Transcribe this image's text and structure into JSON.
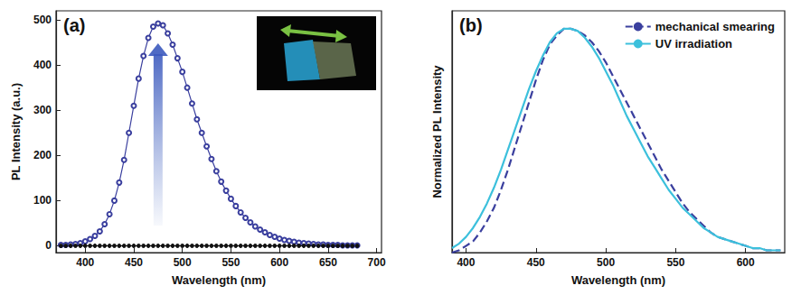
{
  "chart_data": [
    {
      "type": "line",
      "title": "(a)",
      "x_label": "Wavelength (nm)",
      "y_label": "PL Intensity (a.u.)",
      "x": [
        375,
        380,
        385,
        390,
        395,
        400,
        405,
        410,
        415,
        420,
        425,
        430,
        435,
        440,
        445,
        450,
        455,
        460,
        465,
        470,
        475,
        480,
        485,
        490,
        495,
        500,
        505,
        510,
        515,
        520,
        525,
        530,
        535,
        540,
        545,
        550,
        555,
        560,
        565,
        570,
        575,
        580,
        585,
        590,
        595,
        600,
        605,
        610,
        615,
        620,
        625,
        630,
        635,
        640,
        645,
        650,
        655,
        660,
        665,
        670,
        675,
        680
      ],
      "series": [
        {
          "color": "#3a3f9e",
          "marker": "open_circle",
          "values": [
            2,
            2,
            3,
            4,
            6,
            10,
            15,
            22,
            32,
            48,
            70,
            100,
            140,
            190,
            250,
            310,
            370,
            420,
            460,
            485,
            492,
            488,
            470,
            445,
            415,
            385,
            350,
            315,
            280,
            250,
            220,
            192,
            165,
            142,
            122,
            104,
            88,
            74,
            62,
            52,
            43,
            36,
            30,
            24,
            20,
            16,
            13,
            11,
            9,
            7,
            6,
            5,
            4,
            3,
            3,
            2,
            2,
            2,
            1,
            1,
            1,
            1
          ]
        },
        {
          "color": "#111111",
          "marker": "filled_circle",
          "values": [
            0,
            0,
            0,
            0,
            0,
            0,
            0,
            0,
            0,
            0,
            0,
            0,
            0,
            0,
            0,
            0,
            0,
            0,
            0,
            0,
            0,
            0,
            0,
            0,
            0,
            0,
            0,
            0,
            0,
            0,
            0,
            0,
            0,
            0,
            0,
            0,
            0,
            0,
            0,
            0,
            0,
            0,
            0,
            0,
            0,
            0,
            0,
            0,
            0,
            0,
            0,
            0,
            0,
            0,
            0,
            0,
            0,
            0,
            0,
            0,
            0,
            0
          ]
        }
      ],
      "xlim": [
        370,
        705
      ],
      "xticks": [
        400,
        450,
        500,
        550,
        600,
        650,
        700
      ],
      "ylim": [
        -15,
        520
      ],
      "yticks": [
        0,
        100,
        200,
        300,
        400,
        500
      ],
      "grid": false
    },
    {
      "type": "line",
      "title": "(b)",
      "x_label": "Wavelength (nm)",
      "y_label": "Normalized PL Intensity",
      "x": [
        390,
        395,
        400,
        405,
        410,
        415,
        420,
        425,
        430,
        435,
        440,
        445,
        450,
        455,
        460,
        465,
        470,
        475,
        480,
        485,
        490,
        495,
        500,
        505,
        510,
        515,
        520,
        525,
        530,
        535,
        540,
        545,
        550,
        555,
        560,
        565,
        570,
        575,
        580,
        585,
        590,
        595,
        600,
        605,
        610,
        615,
        620,
        625
      ],
      "series": [
        {
          "name": "mechanical smearing",
          "color": "#3a3f9e",
          "line_style": "dashed",
          "values": [
            0.0,
            0.01,
            0.03,
            0.05,
            0.09,
            0.14,
            0.2,
            0.28,
            0.37,
            0.47,
            0.57,
            0.67,
            0.77,
            0.86,
            0.93,
            0.97,
            1.0,
            1.0,
            0.99,
            0.97,
            0.94,
            0.9,
            0.85,
            0.79,
            0.73,
            0.67,
            0.61,
            0.55,
            0.49,
            0.43,
            0.37,
            0.32,
            0.27,
            0.22,
            0.18,
            0.15,
            0.12,
            0.09,
            0.07,
            0.06,
            0.05,
            0.04,
            0.03,
            0.02,
            0.02,
            0.01,
            0.01,
            0.01
          ]
        },
        {
          "name": "UV irradiation",
          "color": "#3cc0dc",
          "line_style": "solid",
          "values": [
            0.02,
            0.04,
            0.07,
            0.11,
            0.16,
            0.22,
            0.29,
            0.37,
            0.46,
            0.55,
            0.64,
            0.73,
            0.81,
            0.88,
            0.94,
            0.98,
            1.0,
            1.0,
            0.99,
            0.96,
            0.92,
            0.87,
            0.81,
            0.75,
            0.68,
            0.61,
            0.55,
            0.49,
            0.43,
            0.38,
            0.33,
            0.28,
            0.24,
            0.2,
            0.17,
            0.14,
            0.11,
            0.09,
            0.07,
            0.06,
            0.05,
            0.04,
            0.03,
            0.02,
            0.02,
            0.01,
            0.01,
            0.01
          ]
        }
      ],
      "xlim": [
        390,
        628
      ],
      "xticks": [
        400,
        450,
        500,
        550,
        600
      ],
      "ylim": [
        0,
        1.08
      ],
      "tick_labels": "x",
      "legend": "top-right",
      "grid": false
    }
  ]
}
